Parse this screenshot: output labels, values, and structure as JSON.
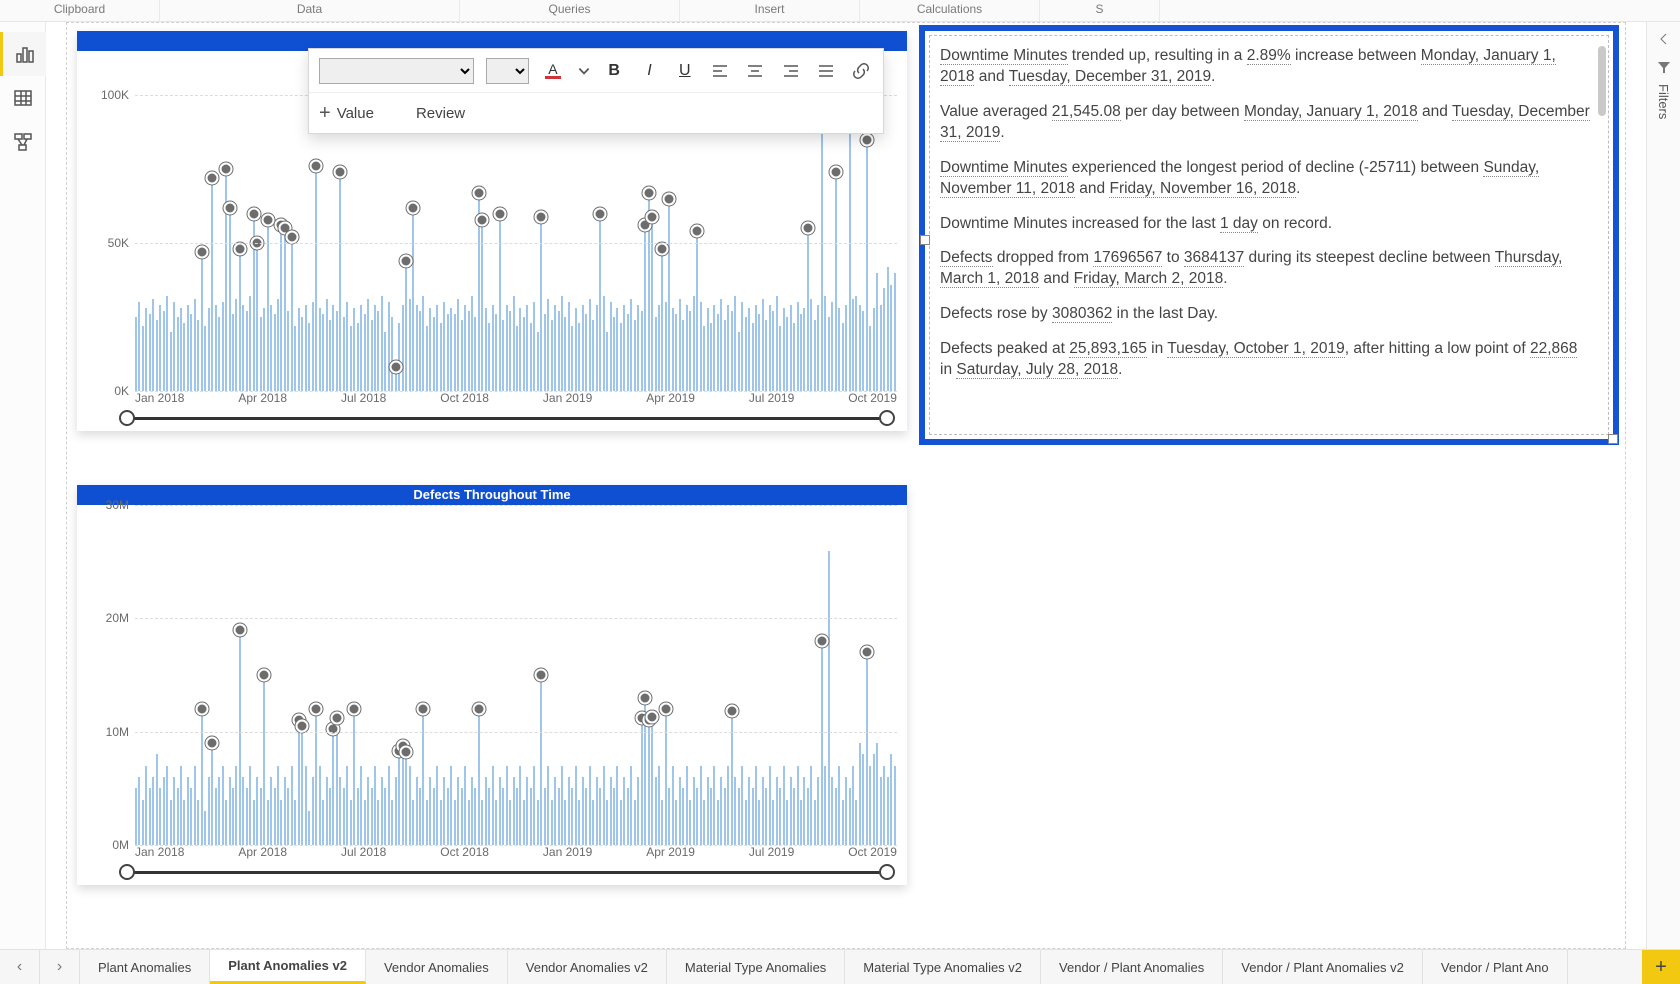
{
  "ribbon_groups": [
    "Clipboard",
    "Data",
    "Queries",
    "Insert",
    "Calculations",
    "S"
  ],
  "left_rail": {
    "items": [
      "report",
      "data",
      "model"
    ],
    "active_index": 0
  },
  "right_pane": {
    "label": "Filters"
  },
  "float_toolbar": {
    "font_family": "",
    "font_size": "",
    "value_label": "Value",
    "review_label": "Review"
  },
  "chart1": {
    "title": "",
    "type": "line-with-anomaly-markers",
    "bar_color": "#9fc6ea",
    "marker_fill": "#6d6d6d",
    "marker_border": "#ffffff",
    "grid_color": "#dcdcdc",
    "font_color": "#6a6a6a",
    "title_bg": "#0f4fd1",
    "ylabel_suffix": "K",
    "yticks": [
      0,
      50,
      100
    ],
    "ymax": 115,
    "xticks": [
      "Jan 2018",
      "Apr 2018",
      "Jul 2018",
      "Oct 2018",
      "Jan 2019",
      "Apr 2019",
      "Jul 2019",
      "Oct 2019"
    ],
    "n_bars": 220,
    "values": [
      25,
      30,
      22,
      28,
      26,
      31,
      24,
      29,
      27,
      32,
      20,
      30,
      25,
      28,
      23,
      29,
      26,
      31,
      24,
      47,
      22,
      28,
      72,
      29,
      25,
      30,
      75,
      62,
      26,
      31,
      48,
      29,
      27,
      32,
      60,
      50,
      25,
      28,
      58,
      29,
      26,
      31,
      56,
      55,
      27,
      52,
      22,
      28,
      25,
      29,
      23,
      30,
      76,
      28,
      26,
      31,
      24,
      29,
      27,
      74,
      25,
      30,
      22,
      28,
      23,
      29,
      26,
      31,
      24,
      29,
      27,
      32,
      20,
      30,
      25,
      8,
      23,
      29,
      44,
      31,
      62,
      29,
      27,
      32,
      22,
      28,
      25,
      29,
      23,
      30,
      26,
      28,
      26,
      31,
      24,
      29,
      27,
      32,
      25,
      67,
      58,
      28,
      23,
      29,
      26,
      60,
      24,
      29,
      27,
      32,
      22,
      28,
      25,
      29,
      23,
      30,
      20,
      59,
      26,
      31,
      24,
      29,
      27,
      32,
      25,
      30,
      22,
      28,
      23,
      29,
      26,
      31,
      24,
      29,
      60,
      32,
      20,
      30,
      25,
      28,
      23,
      29,
      26,
      31,
      24,
      29,
      27,
      56,
      67,
      59,
      25,
      29,
      48,
      30,
      65,
      28,
      26,
      31,
      24,
      29,
      27,
      32,
      54,
      30,
      22,
      28,
      23,
      29,
      26,
      31,
      24,
      29,
      27,
      32,
      20,
      30,
      25,
      28,
      23,
      29,
      26,
      31,
      24,
      29,
      27,
      32,
      22,
      28,
      25,
      29,
      23,
      30,
      26,
      28,
      55,
      31,
      24,
      29,
      95,
      32,
      25,
      30,
      74,
      28,
      23,
      29,
      110,
      31,
      32,
      29,
      27,
      85,
      22,
      28,
      40,
      29,
      35,
      42,
      36,
      40
    ],
    "markers": [
      {
        "i": 19,
        "v": 47
      },
      {
        "i": 22,
        "v": 72
      },
      {
        "i": 26,
        "v": 75
      },
      {
        "i": 27,
        "v": 62
      },
      {
        "i": 30,
        "v": 48
      },
      {
        "i": 34,
        "v": 60
      },
      {
        "i": 35,
        "v": 50
      },
      {
        "i": 38,
        "v": 58
      },
      {
        "i": 42,
        "v": 56
      },
      {
        "i": 43,
        "v": 55
      },
      {
        "i": 45,
        "v": 52
      },
      {
        "i": 52,
        "v": 76
      },
      {
        "i": 59,
        "v": 74
      },
      {
        "i": 75,
        "v": 8
      },
      {
        "i": 78,
        "v": 44
      },
      {
        "i": 80,
        "v": 62
      },
      {
        "i": 99,
        "v": 67
      },
      {
        "i": 100,
        "v": 58
      },
      {
        "i": 105,
        "v": 60
      },
      {
        "i": 117,
        "v": 59
      },
      {
        "i": 134,
        "v": 60
      },
      {
        "i": 147,
        "v": 56
      },
      {
        "i": 148,
        "v": 67
      },
      {
        "i": 149,
        "v": 59
      },
      {
        "i": 152,
        "v": 48
      },
      {
        "i": 154,
        "v": 65
      },
      {
        "i": 162,
        "v": 54
      },
      {
        "i": 194,
        "v": 55
      },
      {
        "i": 198,
        "v": 95
      },
      {
        "i": 202,
        "v": 74
      },
      {
        "i": 211,
        "v": 85
      }
    ]
  },
  "chart2": {
    "title": "Defects Throughout Time",
    "type": "line-with-anomaly-markers",
    "bar_color": "#9fc6ea",
    "marker_fill": "#6d6d6d",
    "marker_border": "#ffffff",
    "grid_color": "#dcdcdc",
    "font_color": "#6a6a6a",
    "title_bg": "#0f4fd1",
    "ylabel_suffix": "M",
    "yticks": [
      0,
      10,
      20,
      30
    ],
    "ymax": 30,
    "xticks": [
      "Jan 2018",
      "Apr 2018",
      "Jul 2018",
      "Oct 2018",
      "Jan 2019",
      "Apr 2019",
      "Jul 2019",
      "Oct 2019"
    ],
    "n_bars": 220,
    "values": [
      5,
      6,
      4,
      7,
      5,
      6,
      8,
      5,
      6,
      7,
      4,
      6,
      5,
      7,
      4,
      6,
      5,
      7,
      4,
      12,
      3,
      6,
      9,
      5,
      6,
      7,
      4,
      6,
      5,
      7,
      19,
      6,
      5,
      7,
      4,
      6,
      5,
      15,
      4,
      6,
      5,
      7,
      4,
      6,
      5,
      7,
      4,
      11,
      10.5,
      7,
      3,
      6,
      12,
      7,
      4,
      6,
      5,
      10.2,
      11.2,
      6,
      5,
      7,
      4,
      12,
      5,
      7,
      4,
      6,
      5,
      7,
      4,
      6,
      5,
      7,
      4,
      6,
      8.3,
      8.7,
      8.2,
      7,
      4,
      6,
      5,
      12,
      4,
      6,
      5,
      7,
      4,
      6,
      5,
      7,
      4,
      6,
      5,
      7,
      4,
      6,
      5,
      12,
      4,
      6,
      5,
      7,
      4,
      6,
      5,
      7,
      4,
      6,
      5,
      7,
      4,
      6,
      5,
      7,
      4,
      15,
      5,
      7,
      4,
      6,
      5,
      7,
      4,
      6,
      5,
      7,
      4,
      6,
      5,
      7,
      4,
      6,
      5,
      7,
      4,
      6,
      5,
      7,
      4,
      6,
      5,
      7,
      4,
      6,
      11.2,
      13,
      11,
      11.3,
      6,
      7,
      4,
      12,
      5,
      7,
      4,
      6,
      5,
      7,
      4,
      6,
      5,
      7,
      4,
      6,
      5,
      7,
      4,
      6,
      5,
      7,
      11.8,
      6,
      5,
      7,
      4,
      6,
      5,
      7,
      4,
      6,
      5,
      7,
      4,
      6,
      5,
      7,
      4,
      6,
      5,
      7,
      4,
      6,
      5,
      7,
      4,
      6,
      18,
      7,
      25.9,
      6,
      5,
      7,
      4,
      6,
      5,
      7,
      4,
      9,
      8,
      17,
      7,
      8,
      9,
      6,
      7,
      6,
      8,
      7
    ],
    "markers": [
      {
        "i": 19,
        "v": 12
      },
      {
        "i": 22,
        "v": 9
      },
      {
        "i": 30,
        "v": 19
      },
      {
        "i": 37,
        "v": 15
      },
      {
        "i": 47,
        "v": 11
      },
      {
        "i": 48,
        "v": 10.5
      },
      {
        "i": 52,
        "v": 12
      },
      {
        "i": 57,
        "v": 10.2
      },
      {
        "i": 58,
        "v": 11.2
      },
      {
        "i": 63,
        "v": 12
      },
      {
        "i": 76,
        "v": 8.3
      },
      {
        "i": 77,
        "v": 8.7
      },
      {
        "i": 78,
        "v": 8.2
      },
      {
        "i": 83,
        "v": 12
      },
      {
        "i": 99,
        "v": 12
      },
      {
        "i": 117,
        "v": 15
      },
      {
        "i": 146,
        "v": 11.2
      },
      {
        "i": 147,
        "v": 13
      },
      {
        "i": 148,
        "v": 11
      },
      {
        "i": 149,
        "v": 11.3
      },
      {
        "i": 153,
        "v": 12
      },
      {
        "i": 172,
        "v": 11.8
      },
      {
        "i": 198,
        "v": 18
      },
      {
        "i": 211,
        "v": 17
      }
    ]
  },
  "narrative": {
    "border_color": "#1453d6",
    "paragraphs": [
      [
        {
          "t": "Downtime Minutes",
          "u": 1
        },
        {
          "t": " trended up, resulting in a "
        },
        {
          "t": "2.89%",
          "u": 1
        },
        {
          "t": " increase between "
        },
        {
          "t": "Monday, January 1, 2018",
          "u": 1
        },
        {
          "t": " and "
        },
        {
          "t": "Tuesday, December 31, 2019",
          "u": 1
        },
        {
          "t": "."
        }
      ],
      [
        {
          "t": "Value averaged "
        },
        {
          "t": "21,545.08",
          "u": 1
        },
        {
          "t": " per day between "
        },
        {
          "t": "Monday, January 1, 2018",
          "u": 1
        },
        {
          "t": " and "
        },
        {
          "t": "Tuesday, December 31, 2019",
          "u": 1
        },
        {
          "t": "."
        }
      ],
      [
        {
          "t": "Downtime Minutes",
          "u": 1
        },
        {
          "t": " experienced the longest period of decline ("
        },
        {
          "t": "-25711",
          "u": 0
        },
        {
          "t": ") between "
        },
        {
          "t": "Sunday, November 11, 2018",
          "u": 1
        },
        {
          "t": " and "
        },
        {
          "t": "Friday, November 16, 2018",
          "u": 1
        },
        {
          "t": "."
        }
      ],
      [
        {
          "t": "Downtime Minutes increased for the last "
        },
        {
          "t": "1 day",
          "u": 1
        },
        {
          "t": " on record."
        }
      ],
      [
        {
          "t": "Defects",
          "u": 1
        },
        {
          "t": " dropped from "
        },
        {
          "t": "17696567",
          "u": 1
        },
        {
          "t": " to "
        },
        {
          "t": "3684137",
          "u": 1
        },
        {
          "t": " during its steepest decline between "
        },
        {
          "t": "Thursday, March 1, 2018",
          "u": 1
        },
        {
          "t": " and "
        },
        {
          "t": "Friday, March 2, 2018",
          "u": 1
        },
        {
          "t": "."
        }
      ],
      [
        {
          "t": "Defects rose by "
        },
        {
          "t": "3080362",
          "u": 1
        },
        {
          "t": " in the last Day."
        }
      ],
      [
        {
          "t": "Defects peaked at "
        },
        {
          "t": "25,893,165",
          "u": 1
        },
        {
          "t": " in "
        },
        {
          "t": "Tuesday, October 1, 2019",
          "u": 1
        },
        {
          "t": ", after hitting a low point of "
        },
        {
          "t": "22,868",
          "u": 1
        },
        {
          "t": " in "
        },
        {
          "t": "Saturday, July 28, 2018",
          "u": 1
        },
        {
          "t": "."
        }
      ]
    ]
  },
  "tabs": {
    "items": [
      "Plant Anomalies",
      "Plant Anomalies v2",
      "Vendor Anomalies",
      "Vendor Anomalies v2",
      "Material Type Anomalies",
      "Material Type Anomalies v2",
      "Vendor / Plant Anomalies",
      "Vendor / Plant Anomalies v2",
      "Vendor / Plant Ano"
    ],
    "active_index": 1
  }
}
